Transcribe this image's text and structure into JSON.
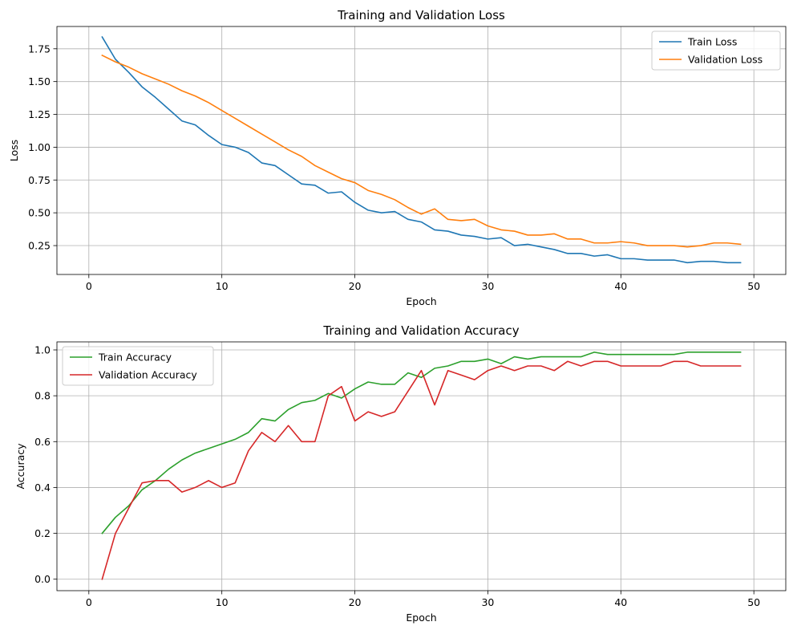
{
  "chart_data": [
    {
      "type": "line",
      "title": "Training and Validation Loss",
      "xlabel": "Epoch",
      "ylabel": "Loss",
      "xlim": [
        -2.4,
        52.4
      ],
      "ylim": [
        0.03,
        1.92
      ],
      "xticks": [
        0,
        10,
        20,
        30,
        40,
        50
      ],
      "yticks": [
        0.25,
        0.5,
        0.75,
        1.0,
        1.25,
        1.5,
        1.75
      ],
      "ytick_labels": [
        "0.25",
        "0.50",
        "0.75",
        "1.00",
        "1.25",
        "1.50",
        "1.75"
      ],
      "grid": true,
      "legend_position": "top-right",
      "x": [
        1,
        2,
        3,
        4,
        5,
        6,
        7,
        8,
        9,
        10,
        11,
        12,
        13,
        14,
        15,
        16,
        17,
        18,
        19,
        20,
        21,
        22,
        23,
        24,
        25,
        26,
        27,
        28,
        29,
        30,
        31,
        32,
        33,
        34,
        35,
        36,
        37,
        38,
        39,
        40,
        41,
        42,
        43,
        44,
        45,
        46,
        47,
        48,
        49
      ],
      "series": [
        {
          "name": "Train Loss",
          "color": "#1f77b4",
          "values": [
            1.84,
            1.67,
            1.57,
            1.46,
            1.38,
            1.29,
            1.2,
            1.17,
            1.09,
            1.02,
            1.0,
            0.96,
            0.88,
            0.86,
            0.79,
            0.72,
            0.71,
            0.65,
            0.66,
            0.58,
            0.52,
            0.5,
            0.51,
            0.45,
            0.43,
            0.37,
            0.36,
            0.33,
            0.32,
            0.3,
            0.31,
            0.25,
            0.26,
            0.24,
            0.22,
            0.19,
            0.19,
            0.17,
            0.18,
            0.15,
            0.15,
            0.14,
            0.14,
            0.14,
            0.12,
            0.13,
            0.13,
            0.12,
            0.12
          ]
        },
        {
          "name": "Validation Loss",
          "color": "#ff7f0e",
          "values": [
            1.7,
            1.65,
            1.61,
            1.56,
            1.52,
            1.48,
            1.43,
            1.39,
            1.34,
            1.28,
            1.22,
            1.16,
            1.1,
            1.04,
            0.98,
            0.93,
            0.86,
            0.81,
            0.76,
            0.73,
            0.67,
            0.64,
            0.6,
            0.54,
            0.49,
            0.53,
            0.45,
            0.44,
            0.45,
            0.4,
            0.37,
            0.36,
            0.33,
            0.33,
            0.34,
            0.3,
            0.3,
            0.27,
            0.27,
            0.28,
            0.27,
            0.25,
            0.25,
            0.25,
            0.24,
            0.25,
            0.27,
            0.27,
            0.26
          ]
        }
      ]
    },
    {
      "type": "line",
      "title": "Training and Validation Accuracy",
      "xlabel": "Epoch",
      "ylabel": "Accuracy",
      "xlim": [
        -2.4,
        52.4
      ],
      "ylim": [
        -0.05,
        1.035
      ],
      "xticks": [
        0,
        10,
        20,
        30,
        40,
        50
      ],
      "yticks": [
        0.0,
        0.2,
        0.4,
        0.6,
        0.8,
        1.0
      ],
      "ytick_labels": [
        "0.0",
        "0.2",
        "0.4",
        "0.6",
        "0.8",
        "1.0"
      ],
      "grid": true,
      "legend_position": "top-left",
      "x": [
        1,
        2,
        3,
        4,
        5,
        6,
        7,
        8,
        9,
        10,
        11,
        12,
        13,
        14,
        15,
        16,
        17,
        18,
        19,
        20,
        21,
        22,
        23,
        24,
        25,
        26,
        27,
        28,
        29,
        30,
        31,
        32,
        33,
        34,
        35,
        36,
        37,
        38,
        39,
        40,
        41,
        42,
        43,
        44,
        45,
        46,
        47,
        48,
        49
      ],
      "series": [
        {
          "name": "Train Accuracy",
          "color": "#2ca02c",
          "values": [
            0.2,
            0.27,
            0.32,
            0.39,
            0.43,
            0.48,
            0.52,
            0.55,
            0.57,
            0.59,
            0.61,
            0.64,
            0.7,
            0.69,
            0.74,
            0.77,
            0.78,
            0.81,
            0.79,
            0.83,
            0.86,
            0.85,
            0.85,
            0.9,
            0.88,
            0.92,
            0.93,
            0.95,
            0.95,
            0.96,
            0.94,
            0.97,
            0.96,
            0.97,
            0.97,
            0.97,
            0.97,
            0.99,
            0.98,
            0.98,
            0.98,
            0.98,
            0.98,
            0.98,
            0.99,
            0.99,
            0.99,
            0.99,
            0.99
          ]
        },
        {
          "name": "Validation Accuracy",
          "color": "#d62728",
          "values": [
            0.0,
            0.2,
            0.31,
            0.42,
            0.43,
            0.43,
            0.38,
            0.4,
            0.43,
            0.4,
            0.42,
            0.56,
            0.64,
            0.6,
            0.67,
            0.6,
            0.6,
            0.8,
            0.84,
            0.69,
            0.73,
            0.71,
            0.73,
            0.82,
            0.91,
            0.76,
            0.91,
            0.89,
            0.87,
            0.91,
            0.93,
            0.91,
            0.93,
            0.93,
            0.91,
            0.95,
            0.93,
            0.95,
            0.95,
            0.93,
            0.93,
            0.93,
            0.93,
            0.95,
            0.95,
            0.93,
            0.93,
            0.93,
            0.93
          ]
        }
      ]
    }
  ]
}
